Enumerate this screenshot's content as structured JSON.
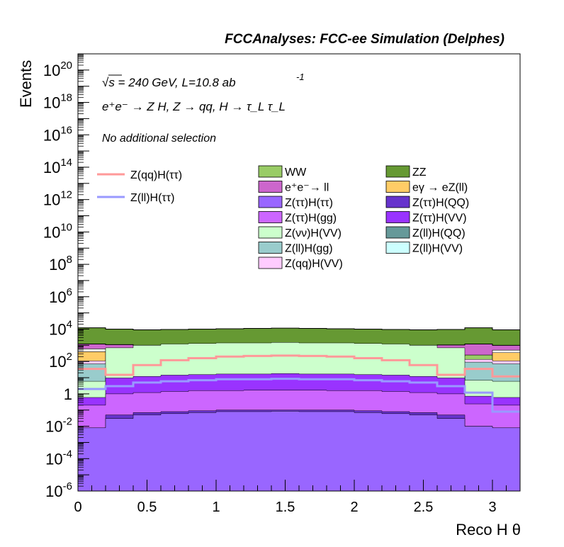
{
  "chart_data": {
    "type": "area",
    "stacked": true,
    "title": "FCCAnalyses: FCC-ee Simulation (Delphes)",
    "xlabel": "Reco H θ",
    "ylabel": "Events",
    "xlim": [
      0,
      3.2
    ],
    "ylim": [
      1e-06,
      1e+21
    ],
    "yscale": "log",
    "grid": false,
    "x_ticks": [
      0,
      0.5,
      1,
      1.5,
      2,
      2.5,
      3
    ],
    "x_tick_labels": [
      "0",
      "0.5",
      "1",
      "1.5",
      "2",
      "2.5",
      "3"
    ],
    "y_ticks": [
      {
        "base": "10",
        "exp": "-6",
        "value": 1e-06
      },
      {
        "base": "10",
        "exp": "-4",
        "value": 0.0001
      },
      {
        "base": "10",
        "exp": "-2",
        "value": 0.01
      },
      {
        "base": "1",
        "exp": "",
        "value": 1
      },
      {
        "base": "10",
        "exp": "2",
        "value": 100.0
      },
      {
        "base": "10",
        "exp": "4",
        "value": 10000.0
      },
      {
        "base": "10",
        "exp": "6",
        "value": 1000000.0
      },
      {
        "base": "10",
        "exp": "8",
        "value": 100000000.0
      },
      {
        "base": "10",
        "exp": "10",
        "value": 10000000000.0
      },
      {
        "base": "10",
        "exp": "12",
        "value": 1000000000000.0
      },
      {
        "base": "10",
        "exp": "14",
        "value": 100000000000000.0
      },
      {
        "base": "10",
        "exp": "16",
        "value": 1e+16
      },
      {
        "base": "10",
        "exp": "18",
        "value": 1e+18
      },
      {
        "base": "10",
        "exp": "20",
        "value": 1e+20
      }
    ],
    "bin_edges": [
      0,
      0.2,
      0.4,
      0.6,
      0.8,
      1.0,
      1.2,
      1.4,
      1.6,
      1.8,
      2.0,
      2.2,
      2.4,
      2.6,
      2.8,
      3.0,
      3.2
    ],
    "stack_top_cumulative": [
      {
        "name": "Z(qq)H(VV)",
        "color": "#ffccff",
        "values": [
          0.6,
          0.75,
          0.85,
          0.95,
          1.0,
          1.05,
          1.1,
          1.1,
          1.1,
          1.1,
          1.05,
          1.0,
          0.95,
          0.85,
          0.75,
          0.6
        ]
      },
      {
        "name": "Z(ll)H(gg)",
        "color": "#99cccc",
        "values": [
          0.55,
          0.7,
          0.8,
          0.9,
          1.0,
          1.0,
          1.05,
          1.05,
          1.05,
          1.05,
          1.0,
          0.95,
          0.9,
          0.8,
          0.7,
          0.55
        ]
      },
      {
        "name": "Z(ll)H(VV)",
        "color": "#ccffff",
        "values": [
          0.04,
          1.5,
          2.0,
          2.3,
          2.5,
          2.6,
          2.7,
          2.8,
          2.7,
          2.6,
          2.5,
          2.3,
          2.0,
          1.5,
          0.05,
          0.04
        ]
      },
      {
        "name": "Z(ll)H(QQ)",
        "color": "#669999",
        "values": [
          0.035,
          1.4,
          1.9,
          2.2,
          2.4,
          2.5,
          2.6,
          2.7,
          2.6,
          2.5,
          2.4,
          2.2,
          1.9,
          1.4,
          0.045,
          0.035
        ]
      },
      {
        "name": "Z(νν)H(VV)",
        "color": "#ccffcc",
        "values": [
          0.06,
          7,
          10,
          12,
          13,
          14,
          14,
          15,
          14,
          14,
          13,
          12,
          10,
          7,
          0.07,
          0.06
        ]
      },
      {
        "name": "Z(ττ)H(VV)",
        "color": "#9933ff",
        "values": [
          0.05,
          0.8,
          1.0,
          1.2,
          1.3,
          1.4,
          1.4,
          1.5,
          1.4,
          1.4,
          1.3,
          1.2,
          1.0,
          0.8,
          0.06,
          0.05
        ]
      },
      {
        "name": "Z(ττ)H(gg)",
        "color": "#cc66ff",
        "values": [
          0.05,
          0.25,
          0.3,
          0.35,
          0.4,
          0.4,
          0.42,
          0.42,
          0.42,
          0.4,
          0.4,
          0.35,
          0.3,
          0.25,
          0.06,
          0.05
        ]
      },
      {
        "name": "Z(ττ)H(QQ)",
        "color": "#6633cc",
        "values": [
          0.008,
          0.05,
          0.07,
          0.08,
          0.09,
          0.1,
          0.1,
          0.1,
          0.1,
          0.1,
          0.09,
          0.08,
          0.07,
          0.05,
          0.01,
          0.008
        ]
      },
      {
        "name": "Z(ττ)H(ττ)",
        "color": "#9966ff",
        "values": [
          0.008,
          0.03,
          0.05,
          0.06,
          0.07,
          0.08,
          0.08,
          0.085,
          0.08,
          0.08,
          0.07,
          0.06,
          0.05,
          0.03,
          0.01,
          0.008
        ]
      }
    ],
    "stack_upper": [
      {
        "name": "eγ → eZ(ll)",
        "color": "#ffcc66",
        "top": [
          400,
          12,
          8,
          8,
          8,
          8,
          8,
          8,
          8,
          8,
          8,
          8,
          8,
          10,
          14,
          350
        ]
      },
      {
        "name": "ZZ_gap",
        "color": "#ffffff",
        "top": [
          600,
          60,
          140,
          220,
          260,
          280,
          290,
          300,
          290,
          280,
          260,
          220,
          140,
          60,
          30,
          500
        ]
      }
    ],
    "stack_total": [
      12000,
      10000,
      9000,
      9500,
      10000,
      10500,
      11000,
      11500,
      11000,
      10500,
      10000,
      9500,
      9000,
      9500,
      12000,
      9000
    ],
    "zz_bottom": [
      1200,
      1100,
      1000,
      1050,
      1100,
      1150,
      1200,
      1250,
      1200,
      1150,
      1100,
      1050,
      1000,
      1050,
      1200,
      1000
    ],
    "ee_ll_bottom": [
      250,
      230,
      200,
      210,
      220,
      230,
      240,
      250,
      240,
      230,
      220,
      210,
      200,
      210,
      250,
      200
    ],
    "series": [
      {
        "name": "Z(qq)H(ττ)",
        "color": "#ff9999",
        "type": "line",
        "values": [
          35,
          15,
          60,
          120,
          160,
          200,
          220,
          230,
          220,
          200,
          160,
          120,
          60,
          15,
          35,
          12
        ]
      },
      {
        "name": "Z(ll)H(ττ)",
        "color": "#9999ff",
        "type": "line",
        "values": [
          2,
          3,
          5,
          6,
          7,
          8,
          8,
          8.5,
          8,
          8,
          7,
          6,
          5,
          3,
          1.2,
          0.08
        ]
      }
    ],
    "legend_stack": [
      {
        "name": "WW",
        "color": "#99cc66"
      },
      {
        "name": "ZZ",
        "color": "#669933"
      },
      {
        "name": "e⁺e⁻→ ll",
        "color": "#cc66cc"
      },
      {
        "name": "eγ → eZ(ll)",
        "color": "#ffcc66"
      },
      {
        "name": "Z(ττ)H(ττ)",
        "color": "#9966ff"
      },
      {
        "name": "Z(ττ)H(QQ)",
        "color": "#6633cc"
      },
      {
        "name": "Z(ττ)H(gg)",
        "color": "#cc66ff"
      },
      {
        "name": "Z(ττ)H(VV)",
        "color": "#9933ff"
      },
      {
        "name": "Z(νν)H(VV)",
        "color": "#ccffcc"
      },
      {
        "name": "Z(ll)H(QQ)",
        "color": "#669999"
      },
      {
        "name": "Z(ll)H(gg)",
        "color": "#99cccc"
      },
      {
        "name": "Z(ll)H(VV)",
        "color": "#ccffff"
      },
      {
        "name": "Z(qq)H(VV)",
        "color": "#ffccff"
      }
    ],
    "legend_lines": [
      {
        "name": "Z(qq)H(ττ)",
        "color": "#ff9999"
      },
      {
        "name": "Z(ll)H(ττ)",
        "color": "#9999ff"
      }
    ],
    "annotations": {
      "energy_line": "√s = 240 GeV, L=10.8 ab",
      "energy_sup": "-1",
      "process_line": "e⁺e⁻ → Z H, Z  → qq, H  → τ_L τ_L",
      "selection_line": "No additional selection"
    }
  }
}
